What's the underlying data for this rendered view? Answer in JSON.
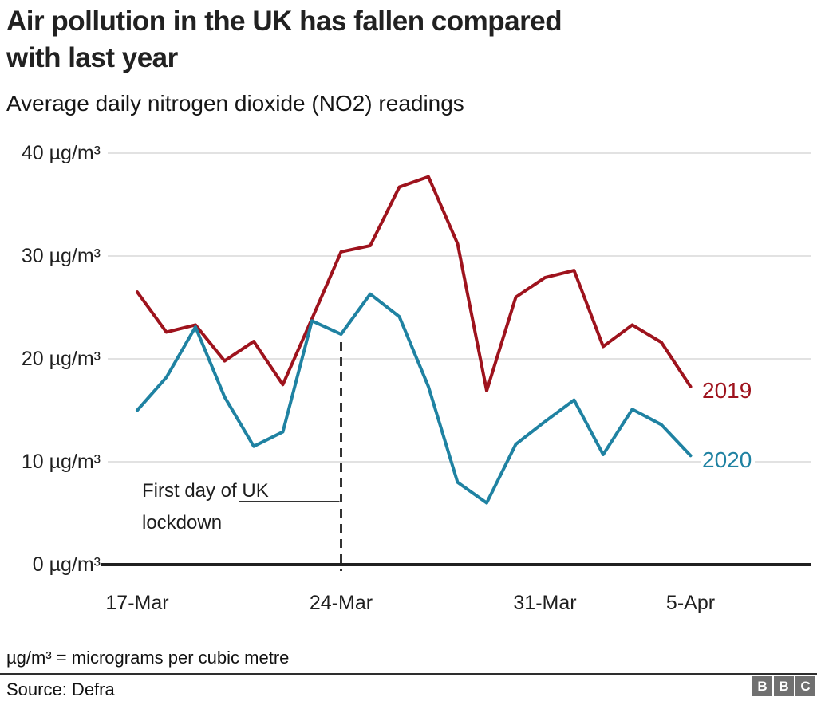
{
  "header": {
    "title_line1": "Air pollution in the UK has fallen compared",
    "title_line2": "with last year",
    "subtitle": "Average daily nitrogen dioxide (NO2) readings"
  },
  "chart_data": {
    "type": "line",
    "title": "Air pollution in the UK has fallen compared with last year",
    "subtitle": "Average daily nitrogen dioxide (NO2) readings",
    "unit": "µg/m³",
    "x": [
      "17-Mar",
      "18-Mar",
      "19-Mar",
      "20-Mar",
      "21-Mar",
      "22-Mar",
      "23-Mar",
      "24-Mar",
      "25-Mar",
      "26-Mar",
      "27-Mar",
      "28-Mar",
      "29-Mar",
      "30-Mar",
      "31-Mar",
      "1-Apr",
      "2-Apr",
      "3-Apr",
      "4-Apr",
      "5-Apr"
    ],
    "series": [
      {
        "name": "2019",
        "color": "#9e131d",
        "values": [
          26.5,
          22.6,
          23.3,
          19.8,
          21.7,
          17.5,
          23.9,
          30.4,
          31.0,
          36.7,
          37.7,
          31.2,
          16.9,
          26.0,
          27.9,
          28.6,
          21.2,
          23.3,
          21.6,
          17.3
        ]
      },
      {
        "name": "2020",
        "color": "#1f82a2",
        "values": [
          15.0,
          18.2,
          23.1,
          16.3,
          11.5,
          12.9,
          23.7,
          22.4,
          26.3,
          24.1,
          17.3,
          8.0,
          6.0,
          11.7,
          13.9,
          16.0,
          10.7,
          15.1,
          13.6,
          10.6
        ]
      }
    ],
    "ylim": [
      0,
      40
    ],
    "grid": "horizontal",
    "grid_color": "#d9d9d9",
    "axis_color": "#202020",
    "legend_position": "line-end-labels-right",
    "y_ticks": [
      {
        "value": 40,
        "label": "40 µg/m³"
      },
      {
        "value": 30,
        "label": "30 µg/m³"
      },
      {
        "value": 20,
        "label": "20 µg/m³"
      },
      {
        "value": 10,
        "label": "10 µg/m³"
      },
      {
        "value": 0,
        "label": "0 µg/m³"
      }
    ],
    "x_ticks": [
      {
        "index": 0,
        "label": "17-Mar"
      },
      {
        "index": 7,
        "label": "24-Mar"
      },
      {
        "index": 14,
        "label": "31-Mar"
      },
      {
        "index": 19,
        "label": "5-Apr"
      }
    ],
    "annotation": {
      "line1": "First day of UK",
      "line2": "lockdown",
      "x_index": 7,
      "line_style": "dashed",
      "line_color": "#333333"
    }
  },
  "footer": {
    "footnote": "µg/m³ = micrograms per cubic metre",
    "source": "Source: Defra",
    "logo_letters": [
      "B",
      "B",
      "C"
    ]
  }
}
